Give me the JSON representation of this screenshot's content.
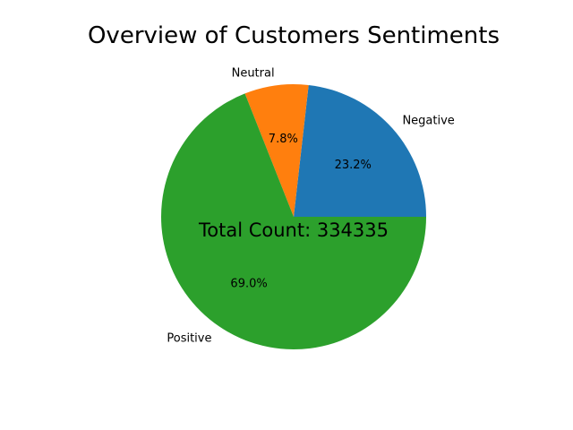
{
  "chart_data": {
    "type": "pie",
    "title": "Overview of Customers Sentiments",
    "categories": [
      "Negative",
      "Neutral",
      "Positive"
    ],
    "values": [
      23.2,
      7.8,
      69.0
    ],
    "percent_labels": [
      "23.2%",
      "7.8%",
      "69.0%"
    ],
    "colors": [
      "#1f77b4",
      "#ff7f0e",
      "#2ca02c"
    ],
    "start_angle_deg": 0,
    "direction": "counterclockwise",
    "annotation": "Total Count: 334335"
  }
}
